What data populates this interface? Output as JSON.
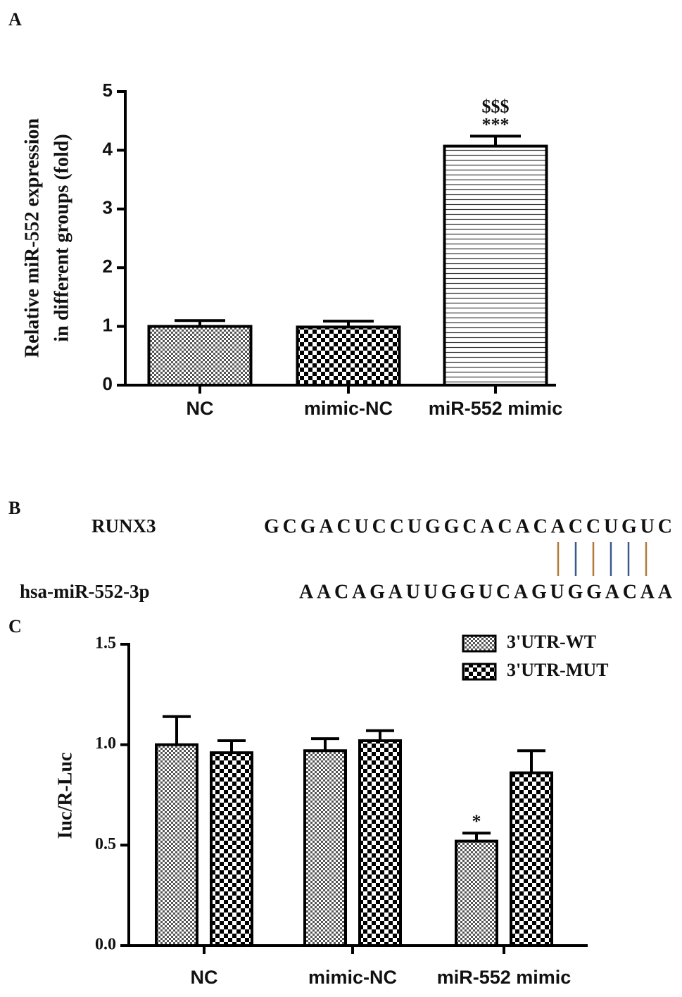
{
  "chart_data": [
    {
      "type": "bar",
      "panel": "A",
      "ylabel": [
        "Relative  miR-552  expression",
        "in different groups (fold)"
      ],
      "categories": [
        "NC",
        "mimic-NC",
        "miR-552 mimic"
      ],
      "values": [
        1.0,
        0.99,
        4.07
      ],
      "errors": [
        0.1,
        0.1,
        0.17
      ],
      "patterns": [
        "fine-checker",
        "checker",
        "hlines"
      ],
      "ylim": [
        0,
        5
      ],
      "yticks": [
        0,
        1,
        2,
        3,
        4,
        5
      ],
      "annotations": [
        {
          "text": "***",
          "at": "miR-552 mimic"
        },
        {
          "text": "$$$",
          "at": "miR-552 mimic"
        }
      ]
    },
    {
      "type": "grouped-bar",
      "panel": "C",
      "ylabel": "Iuc/R-Luc",
      "categories": [
        "NC",
        "mimic-NC",
        "miR-552 mimic"
      ],
      "series": [
        {
          "name": "3'UTR-WT",
          "pattern": "fine-checker",
          "values": [
            1.0,
            0.97,
            0.52
          ],
          "errors": [
            0.14,
            0.06,
            0.04
          ]
        },
        {
          "name": "3'UTR-MUT",
          "pattern": "checker",
          "values": [
            0.96,
            1.02,
            0.86
          ],
          "errors": [
            0.06,
            0.05,
            0.11
          ]
        }
      ],
      "ylim": [
        0,
        1.5
      ],
      "yticks": [
        {
          "value": 0,
          "label": "0.0"
        },
        0.5,
        {
          "value": 1,
          "label": "1.0"
        },
        1.5
      ],
      "legend": "top-right",
      "annotations": [
        {
          "text": "*",
          "series": "3'UTR-WT",
          "at": "miR-552 mimic"
        }
      ]
    }
  ],
  "alignment": {
    "panel": "B",
    "rows": [
      {
        "name": "RUNX3",
        "sequence": "GCGACUCCUGGCACACACCUGUC"
      },
      {
        "name": "hsa-miR-552-3p",
        "sequence": "AACAGAUUGGUCAGUGGACAA"
      }
    ]
  }
}
